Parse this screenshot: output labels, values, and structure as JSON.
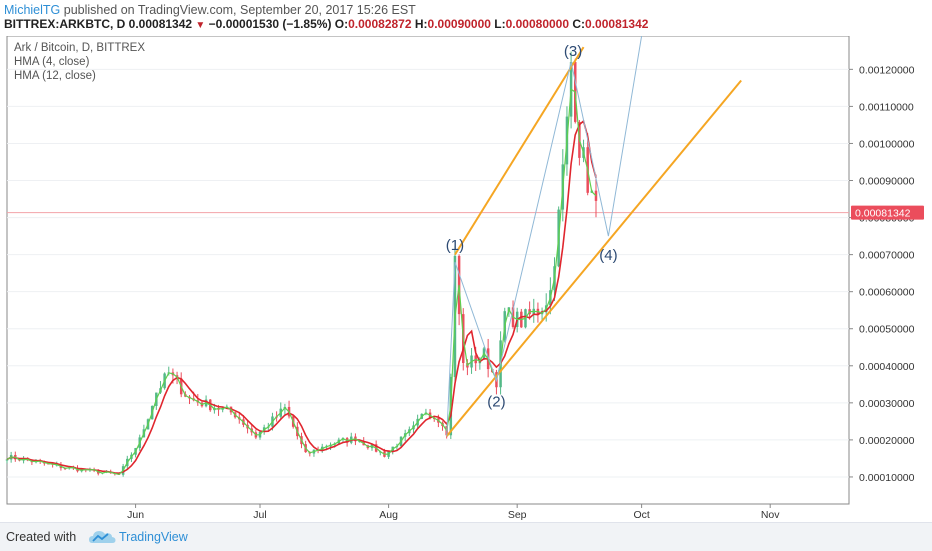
{
  "header": {
    "author": "MichielTG",
    "published_text": " published on TradingView.com, September 20, 2017 15:26 EST",
    "symbol": "BITTREX:ARKBTC, D",
    "last": "0.00081342",
    "change": "−0.00001530 (−1.85%)",
    "o_label": "O:",
    "o_value": "0.00082872",
    "h_label": "H:",
    "h_value": "0.00090000",
    "l_label": "L:",
    "l_value": "0.00080000",
    "c_label": "C:",
    "c_value": "0.00081342"
  },
  "legend": {
    "title": "Ark / Bitcoin, D, BITTREX",
    "hma4": "HMA (4, close)",
    "hma12": "HMA (12, close)"
  },
  "footer": {
    "created_with": "Created with",
    "brand": "TradingView"
  },
  "colors": {
    "up": "#53b987",
    "down": "#eb4d5c",
    "hma4": "#5fcf4f",
    "hma12": "#e0262e",
    "channel": "#f5a623",
    "wave": "#90b8d6",
    "price_line": "#f3a3a8",
    "price_tag": "#eb4d5c"
  },
  "current_price_label": "0.00081342",
  "wave_labels": [
    "(1)",
    "(2)",
    "(3)",
    "(4)"
  ],
  "chart_data": {
    "type": "candlestick",
    "title": "Ark / Bitcoin, D, BITTREX",
    "x_ticks": [
      "Jun",
      "Jul",
      "Aug",
      "Sep",
      "Oct",
      "Nov"
    ],
    "y_ticks": [
      "0.00010000",
      "0.00020000",
      "0.00030000",
      "0.00040000",
      "0.00050000",
      "0.00060000",
      "0.00070000",
      "0.00080000",
      "0.00090000",
      "0.00100000",
      "0.00110000",
      "0.00120000"
    ],
    "ylim": [
      2.7e-05,
      0.00129
    ],
    "series_close_keypoints": [
      [
        "2017-05-01",
        0.000155
      ],
      [
        "2017-05-08",
        0.00014
      ],
      [
        "2017-05-15",
        0.000125
      ],
      [
        "2017-05-22",
        0.000115
      ],
      [
        "2017-05-28",
        0.000105
      ],
      [
        "2017-06-02",
        0.0002
      ],
      [
        "2017-06-06",
        0.00033
      ],
      [
        "2017-06-09",
        0.00038
      ],
      [
        "2017-06-14",
        0.00031
      ],
      [
        "2017-06-20",
        0.00029
      ],
      [
        "2017-06-25",
        0.00027
      ],
      [
        "2017-06-30",
        0.00021
      ],
      [
        "2017-07-07",
        0.000285
      ],
      [
        "2017-07-12",
        0.00016
      ],
      [
        "2017-07-18",
        0.00019
      ],
      [
        "2017-07-24",
        0.000205
      ],
      [
        "2017-07-31",
        0.00016
      ],
      [
        "2017-08-07",
        0.00023
      ],
      [
        "2017-08-10",
        0.00028
      ],
      [
        "2017-08-14",
        0.00025
      ],
      [
        "2017-08-15",
        0.00021
      ],
      [
        "2017-08-16",
        0.00038
      ],
      [
        "2017-08-17",
        0.00068
      ],
      [
        "2017-08-19",
        0.0004
      ],
      [
        "2017-08-24",
        0.00043
      ],
      [
        "2017-08-27",
        0.00036
      ],
      [
        "2017-08-29",
        0.00054
      ],
      [
        "2017-09-02",
        0.00052
      ],
      [
        "2017-09-07",
        0.00056
      ],
      [
        "2017-09-09",
        0.0006
      ],
      [
        "2017-09-11",
        0.0008
      ],
      [
        "2017-09-13",
        0.00105
      ],
      [
        "2017-09-14",
        0.00122
      ],
      [
        "2017-09-16",
        0.001
      ],
      [
        "2017-09-18",
        0.0009
      ],
      [
        "2017-09-20",
        0.000813
      ]
    ],
    "channel_lower": [
      [
        "2017-08-15",
        0.00021
      ],
      [
        "2017-10-25",
        0.00117
      ]
    ],
    "channel_upper": [
      [
        "2017-08-17",
        0.0007
      ],
      [
        "2017-09-17",
        0.00126
      ]
    ],
    "wave_points": [
      {
        "label": "(1)",
        "date": "2017-08-17",
        "price": 0.00068
      },
      {
        "label": "(2)",
        "date": "2017-08-27",
        "price": 0.00036
      },
      {
        "label": "(3)",
        "date": "2017-09-14",
        "price": 0.00122
      },
      {
        "label": "(4)",
        "date": "2017-09-23",
        "price": 0.00075
      }
    ],
    "projection_end": [
      "2017-10-01",
      0.00129
    ],
    "current_price": 0.00081342
  }
}
